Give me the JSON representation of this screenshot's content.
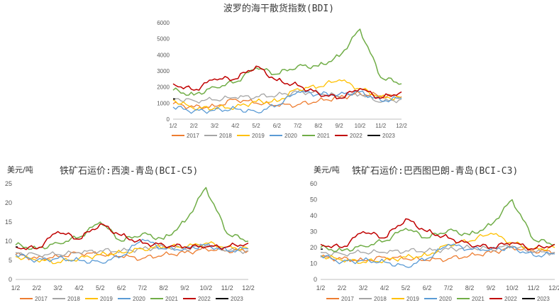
{
  "colors": {
    "2017": "#ED7D31",
    "2018": "#A5A5A5",
    "2019": "#FFC000",
    "2020": "#5B9BD5",
    "2021": "#70AD47",
    "2022": "#C00000",
    "2023": "#000000"
  },
  "chart_data": [
    {
      "type": "line",
      "title": "波罗的海干散货指数(BDI)",
      "unit": "",
      "categories": [
        "1/2",
        "2/2",
        "3/2",
        "4/2",
        "5/2",
        "6/2",
        "7/2",
        "8/2",
        "9/2",
        "10/2",
        "11/2",
        "12/2"
      ],
      "ylim": [
        0,
        6000
      ],
      "yticks": [
        0,
        1000,
        2000,
        3000,
        4000,
        5000,
        6000
      ],
      "legend": "bottom",
      "grid": false,
      "series": [
        {
          "name": "2017",
          "values": [
            950,
            750,
            800,
            1250,
            1000,
            850,
            900,
            1150,
            1350,
            1600,
            1450,
            1400
          ]
        },
        {
          "name": "2018",
          "values": [
            1300,
            1150,
            1200,
            1350,
            1400,
            1500,
            1700,
            1650,
            1400,
            1550,
            1050,
            1250
          ]
        },
        {
          "name": "2019",
          "values": [
            1200,
            650,
            700,
            750,
            1100,
            1100,
            1900,
            2000,
            2450,
            1900,
            1400,
            1300
          ]
        },
        {
          "name": "2020",
          "values": [
            750,
            500,
            550,
            650,
            450,
            850,
            1700,
            1550,
            1550,
            1700,
            1150,
            1300
          ]
        },
        {
          "name": "2021",
          "values": [
            1800,
            1500,
            2000,
            2300,
            3200,
            2800,
            3300,
            3300,
            3900,
            5600,
            2600,
            2200
          ]
        },
        {
          "name": "2022",
          "values": [
            2200,
            1800,
            2500,
            2500,
            3300,
            2400,
            2100,
            1600,
            1300,
            1900,
            1300,
            1700
          ]
        },
        {
          "name": "2023",
          "values": [
            1250,
            null,
            null,
            null,
            null,
            null,
            null,
            null,
            null,
            null,
            null,
            null
          ]
        }
      ]
    },
    {
      "type": "line",
      "title": "铁矿石运价:西澳-青岛(BCI-C5)",
      "unit": "美元/吨",
      "categories": [
        "1/2",
        "2/2",
        "3/2",
        "4/2",
        "5/2",
        "6/2",
        "7/2",
        "8/2",
        "9/2",
        "10/2",
        "11/2",
        "12/2"
      ],
      "ylim": [
        0,
        25
      ],
      "yticks": [
        0,
        5,
        10,
        15,
        20,
        25
      ],
      "legend": "bottom",
      "grid": false,
      "series": [
        {
          "name": "2017",
          "values": [
            6.5,
            5.5,
            6,
            7,
            6.5,
            6,
            5.5,
            6.5,
            7,
            8,
            7.5,
            7.5
          ]
        },
        {
          "name": "2018",
          "values": [
            7,
            6.5,
            6.5,
            7,
            7.5,
            7.5,
            8,
            8.5,
            8,
            9,
            7.5,
            7.5
          ]
        },
        {
          "name": "2019",
          "values": [
            6,
            5,
            4.5,
            5.5,
            6.5,
            7,
            8,
            8.5,
            8.5,
            9.5,
            8.5,
            8
          ]
        },
        {
          "name": "2020",
          "values": [
            6.5,
            5,
            5.5,
            5,
            4.5,
            6,
            10.5,
            8,
            8,
            9,
            7.5,
            8
          ]
        },
        {
          "name": "2021",
          "values": [
            9,
            8,
            9.5,
            11,
            15,
            10,
            12,
            10.5,
            15,
            24,
            12,
            10
          ]
        },
        {
          "name": "2022",
          "values": [
            8.5,
            8,
            12.5,
            10.5,
            14.5,
            11.5,
            9.5,
            9,
            8.5,
            8.5,
            8.5,
            9.5
          ]
        },
        {
          "name": "2023",
          "values": [
            8.5,
            null,
            null,
            null,
            null,
            null,
            null,
            null,
            null,
            null,
            null,
            null
          ]
        }
      ]
    },
    {
      "type": "line",
      "title": "铁矿石运价:巴西图巴朗-青岛(BCI-C3)",
      "unit": "美元/吨",
      "categories": [
        "1/2",
        "2/2",
        "3/2",
        "4/2",
        "5/2",
        "6/2",
        "7/2",
        "8/2",
        "9/2",
        "10/2",
        "11/2",
        "12/2"
      ],
      "ylim": [
        0,
        60
      ],
      "yticks": [
        0,
        10,
        20,
        30,
        40,
        50,
        60
      ],
      "legend": "bottom",
      "grid": false,
      "series": [
        {
          "name": "2017",
          "values": [
            14,
            13,
            12,
            14,
            13,
            12,
            13,
            15,
            17,
            20,
            18,
            17
          ]
        },
        {
          "name": "2018",
          "values": [
            17,
            16,
            17,
            17,
            18,
            18,
            19,
            20,
            19,
            21,
            17,
            17
          ]
        },
        {
          "name": "2019",
          "values": [
            15,
            12,
            11,
            12,
            14,
            15,
            22,
            24,
            29,
            23,
            19,
            20
          ]
        },
        {
          "name": "2020",
          "values": [
            15,
            11,
            12,
            11,
            8,
            13,
            22,
            19,
            19,
            20,
            15,
            16
          ]
        },
        {
          "name": "2021",
          "values": [
            20,
            18,
            21,
            24,
            32,
            26,
            31,
            28,
            34,
            50,
            25,
            22
          ]
        },
        {
          "name": "2022",
          "values": [
            22,
            20,
            30,
            26,
            38,
            30,
            26,
            22,
            20,
            23,
            19,
            22
          ]
        },
        {
          "name": "2023",
          "values": [
            19,
            null,
            null,
            null,
            null,
            null,
            null,
            null,
            null,
            null,
            null,
            null
          ]
        }
      ]
    }
  ]
}
